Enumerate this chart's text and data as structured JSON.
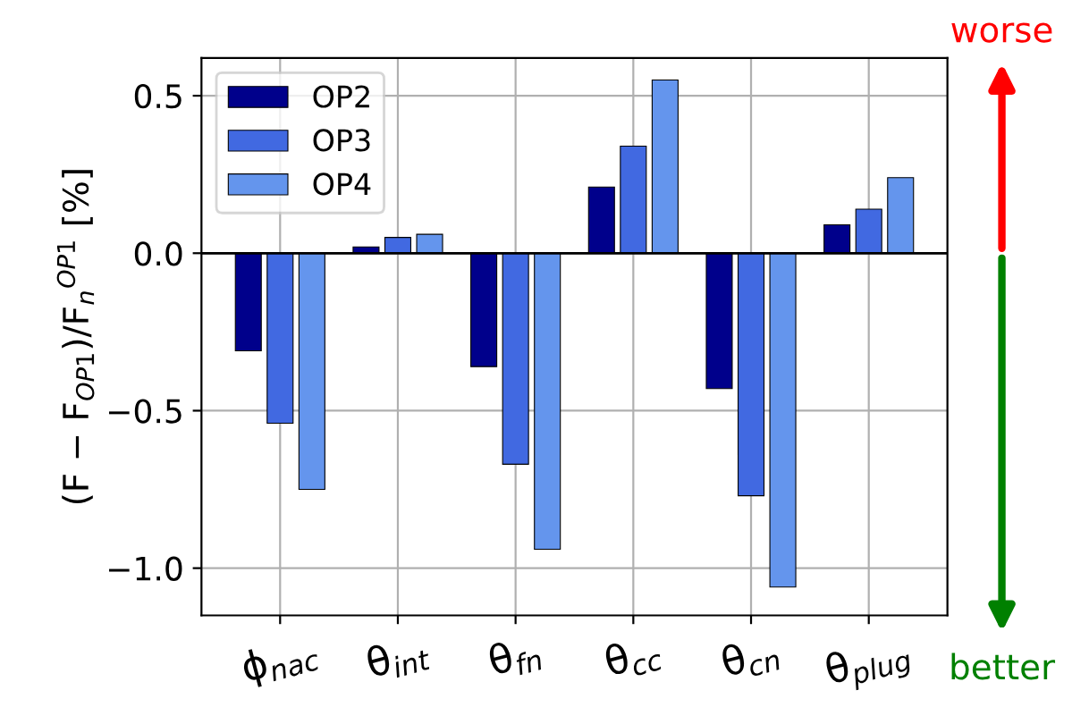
{
  "chart_data": {
    "type": "bar",
    "categories": [
      "ϕ$_{nac}$",
      "θ$_{int}$",
      "θ$_{fn}$",
      "θ$_{cc}$",
      "θ$_{cn}$",
      "θ$_{plug}$"
    ],
    "series": [
      {
        "name": "OP2",
        "color": "#00008b",
        "values": [
          -0.31,
          0.02,
          -0.36,
          0.21,
          -0.43,
          0.09
        ]
      },
      {
        "name": "OP3",
        "color": "#4169e1",
        "values": [
          -0.54,
          0.05,
          -0.67,
          0.34,
          -0.77,
          0.14
        ]
      },
      {
        "name": "OP4",
        "color": "#6495ed",
        "values": [
          -0.75,
          0.06,
          -0.94,
          0.55,
          -1.06,
          0.24
        ]
      }
    ],
    "ylabel": "(F − F$_{OP1}$)/F$_{n}$$^{OP1}$ [%]",
    "ylim": [
      -1.15,
      0.62
    ],
    "yticks": [
      {
        "value": -1.0,
        "label": "−1.0"
      },
      {
        "value": -0.5,
        "label": "−0.5"
      },
      {
        "value": 0.0,
        "label": "0.0"
      },
      {
        "value": 0.5,
        "label": "0.5"
      }
    ],
    "ref_lines": [
      {
        "axis": "y",
        "value": 0.0,
        "label": null,
        "color": "#000000"
      }
    ],
    "annotations": [
      "worse",
      "better"
    ],
    "grid": true,
    "legend": "top left"
  }
}
